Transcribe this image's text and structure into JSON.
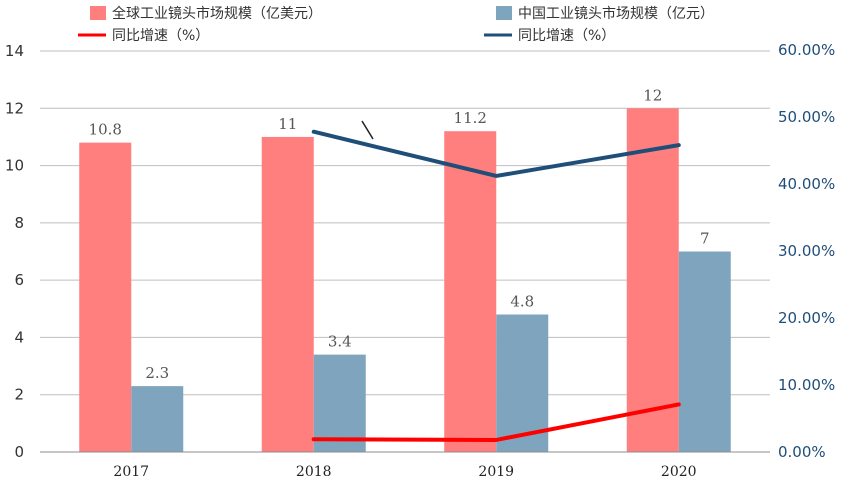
{
  "chart_data": {
    "type": "bar",
    "categories": [
      "2017",
      "2018",
      "2019",
      "2020"
    ],
    "series": [
      {
        "name": "全球工业镜头市场规模（亿美元）",
        "kind": "bar",
        "axis": "left",
        "color": "#ff7f7f",
        "values": [
          10.8,
          11,
          11.2,
          12
        ],
        "labels": [
          "10.8",
          "11",
          "11.2",
          "12"
        ]
      },
      {
        "name": "中国工业镜头市场规模（亿元）",
        "kind": "bar",
        "axis": "left",
        "color": "#7fa5be",
        "values": [
          2.3,
          3.4,
          4.8,
          7
        ],
        "labels": [
          "2.3",
          "3.4",
          "4.8",
          "7"
        ]
      },
      {
        "name": "同比增速（%）",
        "kind": "line",
        "axis": "right",
        "color": "#ff0000",
        "values": [
          null,
          1.9,
          1.8,
          7.1
        ]
      },
      {
        "name": "同比增速（%）",
        "kind": "line",
        "axis": "right",
        "color": "#1f4e79",
        "values": [
          null,
          47.8,
          41.2,
          45.8
        ]
      }
    ],
    "y_left": {
      "range": [
        0,
        14
      ],
      "ticks": [
        "0",
        "2",
        "4",
        "6",
        "8",
        "10",
        "12",
        "14"
      ]
    },
    "y_right": {
      "range": [
        0,
        60
      ],
      "ticks": [
        "0.00%",
        "10.00%",
        "20.00%",
        "30.00%",
        "40.00%",
        "50.00%",
        "60.00%"
      ]
    },
    "grid": true,
    "legend_position": "top"
  }
}
